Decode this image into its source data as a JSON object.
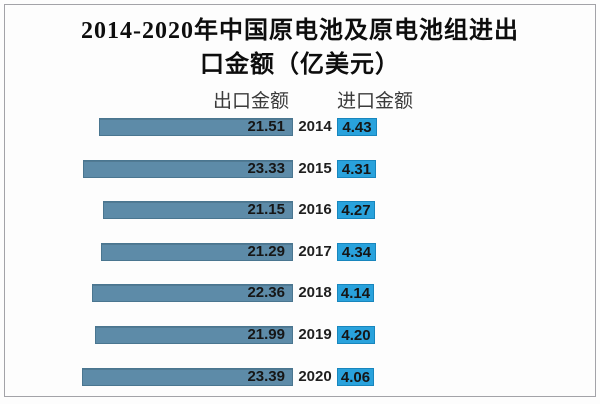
{
  "title": {
    "lines": [
      "2014-2020年中国原电池及原电池组进出",
      "口金额（亿美元）"
    ]
  },
  "legend": {
    "export_label": "出口金额",
    "import_label": "进口金额"
  },
  "colors": {
    "export_bar": "#5d8ba8",
    "export_bar_border": "#4a7690",
    "import_bar": "#29a2dc",
    "import_bar_border": "#1886bd",
    "frame_border": "#a3a3a8",
    "text": "#161616",
    "legend_text": "#3b3b3b"
  },
  "chart_data": {
    "type": "bar",
    "variant": "diverging-tornado",
    "title": "2014-2020年中国原电池及原电池组进出口金额（亿美元）",
    "unit": "亿美元",
    "categories": [
      "2014",
      "2015",
      "2016",
      "2017",
      "2018",
      "2019",
      "2020"
    ],
    "series": [
      {
        "name": "出口金额",
        "side": "left",
        "values": [
          21.51,
          23.33,
          21.15,
          21.29,
          22.36,
          21.99,
          23.39
        ]
      },
      {
        "name": "进口金额",
        "side": "right",
        "values": [
          4.43,
          4.31,
          4.27,
          4.34,
          4.14,
          4.2,
          4.06
        ]
      }
    ],
    "value_labels": true,
    "value_decimals": 2,
    "axis": "none",
    "grid": false,
    "legend_position": "top"
  }
}
